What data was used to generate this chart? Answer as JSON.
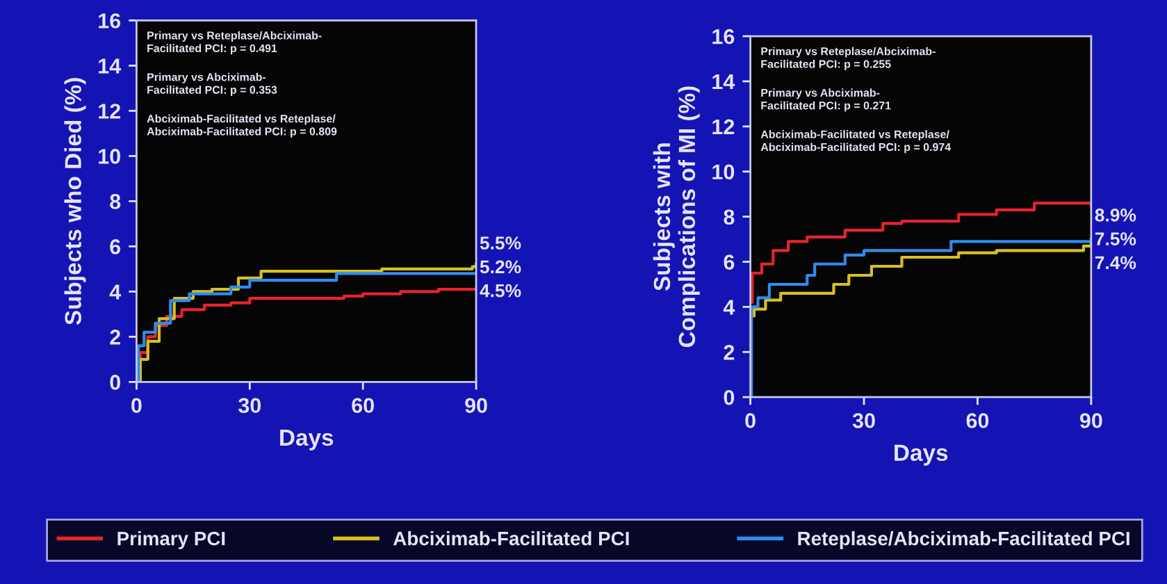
{
  "chart_data": [
    {
      "type": "step",
      "xlabel": "Days",
      "ylabel": "Subjects who Died (%)",
      "xlim": [
        0,
        90
      ],
      "ylim": [
        0,
        16
      ],
      "xticks": [
        0,
        30,
        60,
        90
      ],
      "yticks": [
        0,
        2,
        4,
        6,
        8,
        10,
        12,
        14,
        16
      ],
      "grid": false,
      "legend": "bottom",
      "line_style": "solid",
      "marker": "none",
      "annotations": [
        "Primary vs Reteplase/Abciximab-\nFacilitated PCI: p = 0.491",
        "Primary vs Abciximab-\nFacilitated PCI: p = 0.353",
        "Abciximab-Facilitated vs Reteplase/\nAbciximab-Facilitated PCI: p = 0.809",
        "5.5%",
        "5.2%",
        "4.5%"
      ],
      "series": [
        {
          "name": "Primary PCI",
          "color": "#e8232b",
          "x": [
            0,
            1,
            3,
            5,
            8,
            12,
            18,
            25,
            30,
            45,
            55,
            60,
            70,
            80,
            90
          ],
          "values": [
            0,
            1.3,
            2.0,
            2.5,
            2.9,
            3.2,
            3.4,
            3.5,
            3.7,
            3.7,
            3.8,
            3.9,
            4.0,
            4.1,
            4.1
          ]
        },
        {
          "name": "Abciximab-Facilitated PCI",
          "color": "#d8c020",
          "x": [
            0,
            1,
            3,
            6,
            10,
            15,
            20,
            27,
            33,
            50,
            65,
            80,
            89,
            90
          ],
          "values": [
            0,
            1.0,
            1.8,
            2.8,
            3.7,
            4.0,
            4.1,
            4.6,
            4.9,
            4.9,
            5.0,
            5.0,
            5.1,
            5.2
          ]
        },
        {
          "name": "Reteplase/Abciximab-Facilitated PCI",
          "color": "#2f8cf0",
          "x": [
            0,
            0.5,
            2,
            5,
            9,
            14,
            25,
            30,
            52,
            53,
            70,
            90
          ],
          "values": [
            0,
            1.6,
            2.2,
            2.6,
            3.6,
            3.9,
            4.2,
            4.5,
            4.5,
            4.8,
            4.8,
            4.8
          ]
        }
      ]
    },
    {
      "type": "step",
      "xlabel": "Days",
      "ylabel": "Subjects with\nComplications of MI (%)",
      "xlim": [
        0,
        90
      ],
      "ylim": [
        0,
        16
      ],
      "xticks": [
        0,
        30,
        60,
        90
      ],
      "yticks": [
        0,
        2,
        4,
        6,
        8,
        10,
        12,
        14,
        16
      ],
      "grid": false,
      "line_style": "solid",
      "marker": "none",
      "annotations": [
        "Primary vs Reteplase/Abciximab-\nFacilitated PCI: p = 0.255",
        "Primary vs Abciximab-\nFacilitated PCI: p = 0.271",
        "Abciximab-Facilitated vs Reteplase/\nAbciximab-Facilitated PCI: p = 0.974",
        "8.9%",
        "7.5%",
        "7.4%"
      ],
      "series": [
        {
          "color": "#e8232b",
          "x": [
            0,
            0.5,
            3,
            6,
            10,
            15,
            25,
            35,
            40,
            52,
            55,
            65,
            75,
            85,
            90
          ],
          "values": [
            4.2,
            5.5,
            5.9,
            6.5,
            6.9,
            7.1,
            7.4,
            7.7,
            7.8,
            7.8,
            8.1,
            8.3,
            8.6,
            8.6,
            8.5
          ]
        },
        {
          "color": "#d8c020",
          "x": [
            0,
            1,
            4,
            8,
            18,
            22,
            26,
            32,
            40,
            55,
            65,
            80,
            88,
            90
          ],
          "values": [
            3.6,
            3.9,
            4.3,
            4.6,
            4.6,
            5.0,
            5.4,
            5.8,
            6.2,
            6.4,
            6.5,
            6.5,
            6.7,
            6.9
          ]
        },
        {
          "color": "#2f8cf0",
          "x": [
            0,
            0.3,
            2,
            5,
            15,
            17,
            25,
            30,
            52,
            53,
            70,
            90
          ],
          "values": [
            0,
            4.0,
            4.4,
            5.0,
            5.4,
            5.9,
            6.3,
            6.5,
            6.5,
            6.9,
            6.9,
            7.0
          ]
        }
      ]
    }
  ]
}
